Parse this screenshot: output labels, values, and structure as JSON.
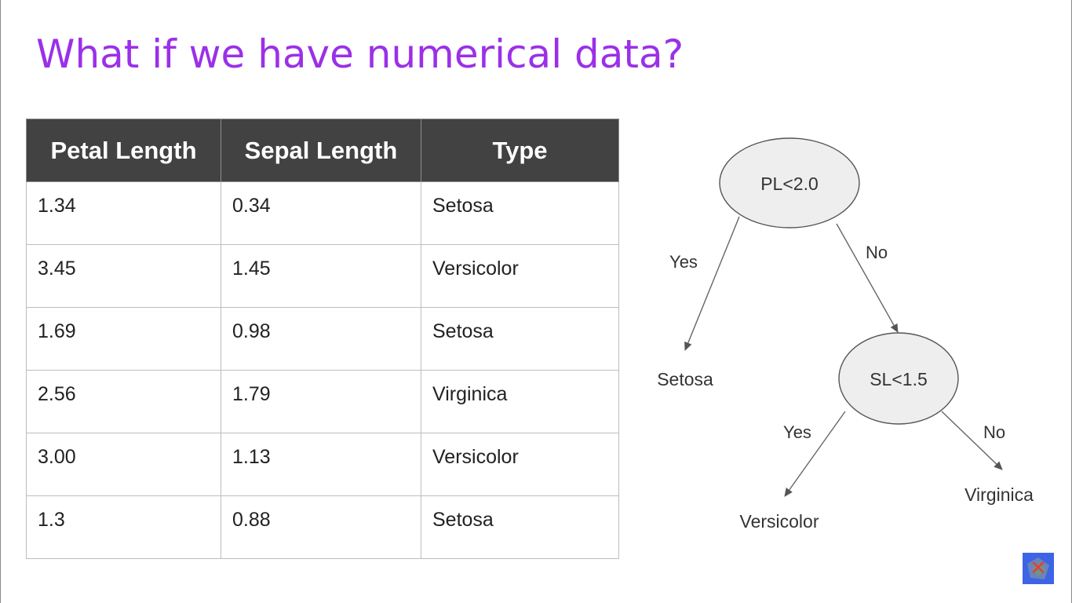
{
  "slide": {
    "title": "What if we have numerical data?"
  },
  "table": {
    "headers": [
      "Petal Length",
      "Sepal Length",
      "Type"
    ],
    "rows": [
      [
        "1.34",
        "0.34",
        "Setosa"
      ],
      [
        "3.45",
        "1.45",
        "Versicolor"
      ],
      [
        "1.69",
        "0.98",
        "Setosa"
      ],
      [
        "2.56",
        "1.79",
        "Virginica"
      ],
      [
        "3.00",
        "1.13",
        "Versicolor"
      ],
      [
        "1.3",
        "0.88",
        "Setosa"
      ]
    ]
  },
  "tree": {
    "root": {
      "condition": "PL<2.0",
      "yes_edge": "Yes",
      "no_edge": "No",
      "yes_leaf": "Setosa"
    },
    "child": {
      "condition": "SL<1.5",
      "yes_edge": "Yes",
      "no_edge": "No",
      "yes_leaf": "Versicolor",
      "no_leaf": "Virginica"
    }
  },
  "colors": {
    "title": "#9b30e8",
    "table_header_bg": "#424242",
    "node_fill": "#eeeeee",
    "badge": "#3d64e6"
  },
  "icons": {
    "corner_badge": "close-icon"
  }
}
